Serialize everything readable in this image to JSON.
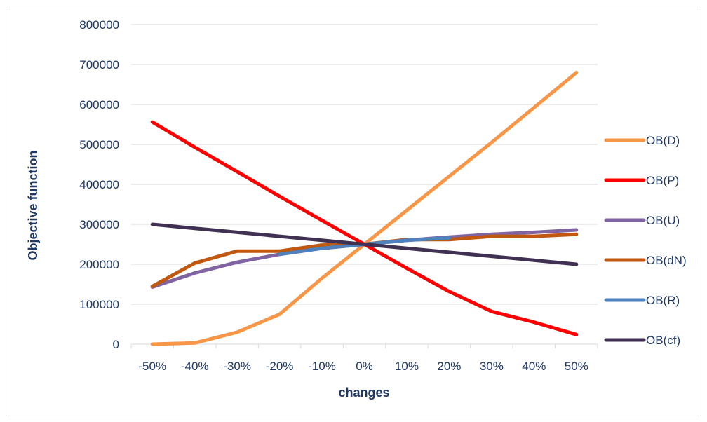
{
  "chart_data": {
    "type": "line",
    "title": "",
    "xlabel": "changes",
    "ylabel": "Objective function",
    "categories": [
      "-50%",
      "-40%",
      "-30%",
      "-20%",
      "-10%",
      "0%",
      "10%",
      "20%",
      "30%",
      "40%",
      "50%"
    ],
    "ylim": [
      0,
      800000
    ],
    "yticks": [
      0,
      100000,
      200000,
      300000,
      400000,
      500000,
      600000,
      700000,
      800000
    ],
    "grid": "horizontal",
    "legend_position": "right",
    "series": [
      {
        "name": "OB(D)",
        "color": "#f79646",
        "values": [
          0,
          3000,
          30000,
          75000,
          165000,
          250000,
          335000,
          420000,
          505000,
          592000,
          680000
        ]
      },
      {
        "name": "OB(P)",
        "color": "#ff0000",
        "values": [
          556000,
          493000,
          432000,
          370000,
          310000,
          250000,
          190000,
          132000,
          82000,
          55000,
          24000
        ]
      },
      {
        "name": "OB(U)",
        "color": "#8064a2",
        "values": [
          143000,
          178000,
          205000,
          225000,
          240000,
          250000,
          260000,
          268000,
          275000,
          280000,
          286000
        ]
      },
      {
        "name": "OB(dN)",
        "color": "#c0580f",
        "values": [
          145000,
          203000,
          233000,
          233000,
          248000,
          250000,
          262000,
          262000,
          270000,
          270000,
          275000
        ]
      },
      {
        "name": "OB(R)",
        "color": "#4f81bd",
        "values": [
          null,
          null,
          null,
          225000,
          240000,
          250000,
          260000,
          266000,
          null,
          null,
          null
        ]
      },
      {
        "name": "OB(cf)",
        "color": "#403152",
        "values": [
          300000,
          290000,
          280000,
          270000,
          260000,
          250000,
          240000,
          230000,
          220000,
          210000,
          200000
        ]
      }
    ]
  }
}
